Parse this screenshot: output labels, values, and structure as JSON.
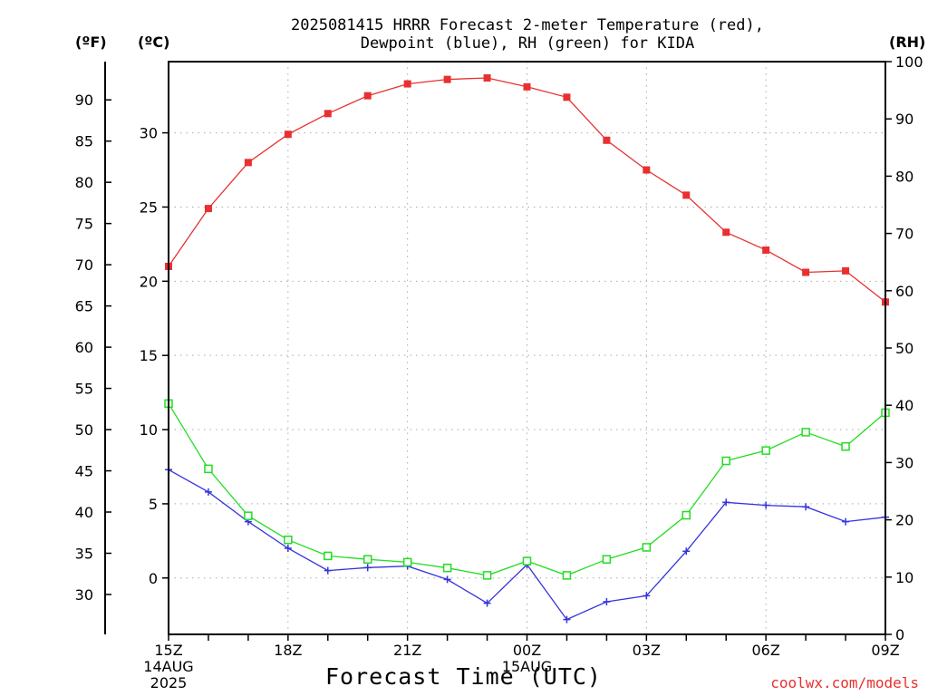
{
  "chart_data": {
    "type": "line",
    "title": "2025081415 HRRR Forecast 2-meter Temperature (red),",
    "subtitle": "Dewpoint (blue), RH (green) for KIDA",
    "xlabel": "Forecast Time (UTC)",
    "units": {
      "fahrenheit": "(ºF)",
      "celsius": "(ºC)",
      "rh": "(RH)"
    },
    "x_ticks": [
      {
        "hour": 0,
        "label": "15Z",
        "sub1": "14AUG",
        "sub2": "2025"
      },
      {
        "hour": 3,
        "label": "18Z"
      },
      {
        "hour": 6,
        "label": "21Z"
      },
      {
        "hour": 9,
        "label": "00Z",
        "sub1": "15AUG"
      },
      {
        "hour": 12,
        "label": "03Z"
      },
      {
        "hour": 15,
        "label": "06Z"
      },
      {
        "hour": 18,
        "label": "09Z"
      }
    ],
    "x_range": [
      0,
      18
    ],
    "celsius_axis": {
      "range": [
        -3.8,
        34.8
      ],
      "ticks": [
        0,
        5,
        10,
        15,
        20,
        25,
        30
      ]
    },
    "fahrenheit_axis": {
      "ticks": [
        30,
        35,
        40,
        45,
        50,
        55,
        60,
        65,
        70,
        75,
        80,
        85,
        90
      ]
    },
    "rh_axis": {
      "range": [
        0,
        100
      ],
      "ticks": [
        0,
        10,
        20,
        30,
        40,
        50,
        60,
        70,
        80,
        90,
        100
      ]
    },
    "grid": true,
    "series": [
      {
        "name": "Temperature",
        "axis": "celsius",
        "color": "#e83030",
        "marker": "filled-square",
        "x": [
          0,
          1,
          2,
          3,
          4,
          5,
          6,
          7,
          8,
          9,
          10,
          11,
          12,
          13,
          14,
          15,
          16,
          17,
          18
        ],
        "values": [
          21.0,
          24.9,
          28.0,
          29.9,
          31.3,
          32.5,
          33.3,
          33.6,
          33.7,
          33.1,
          32.4,
          29.5,
          27.5,
          25.8,
          23.3,
          22.1,
          20.6,
          20.7,
          18.6
        ]
      },
      {
        "name": "Dewpoint",
        "axis": "celsius",
        "color": "#3333dd",
        "marker": "plus",
        "x": [
          0,
          1,
          2,
          3,
          4,
          5,
          6,
          7,
          8,
          9,
          10,
          11,
          12,
          13,
          14,
          15,
          16,
          17,
          18
        ],
        "values": [
          7.3,
          5.8,
          3.8,
          2.0,
          0.5,
          0.7,
          0.8,
          -0.1,
          -1.7,
          0.9,
          -2.8,
          -1.6,
          -1.2,
          1.8,
          5.1,
          4.9,
          4.8,
          3.8,
          4.1
        ]
      },
      {
        "name": "RH",
        "axis": "rh",
        "color": "#22dd22",
        "marker": "open-square",
        "x": [
          0,
          1,
          2,
          3,
          4,
          5,
          6,
          7,
          8,
          9,
          10,
          11,
          12,
          13,
          14,
          15,
          16,
          17,
          18
        ],
        "values": [
          40.3,
          28.9,
          20.7,
          16.5,
          13.7,
          13.1,
          12.6,
          11.6,
          10.3,
          12.8,
          10.3,
          13.1,
          15.2,
          20.8,
          30.3,
          32.1,
          35.3,
          32.8,
          38.7
        ]
      }
    ]
  },
  "footer": {
    "credit": "coolwx.com/models"
  }
}
